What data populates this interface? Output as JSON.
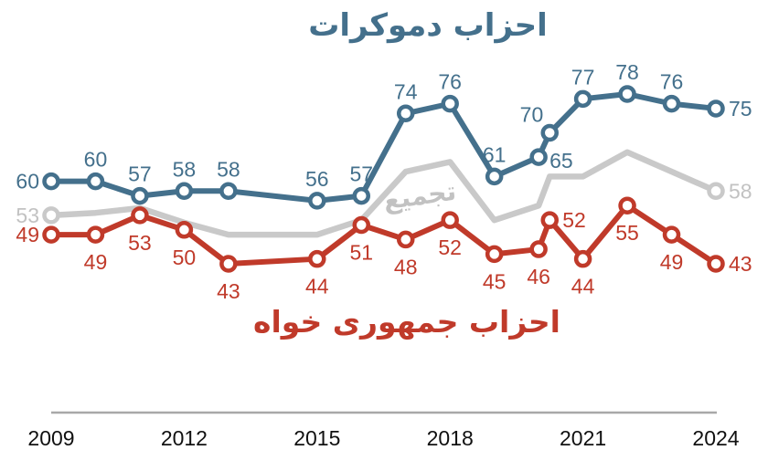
{
  "chart_data": {
    "type": "line",
    "title": "احزاب دموكرات",
    "bottom_title": "احزاب جمهوری خواه",
    "aggregate_label": "تجميع",
    "x": [
      2009,
      2010,
      2011,
      2012,
      2013,
      2015,
      2016,
      2017,
      2018,
      2019,
      2020,
      2020.25,
      2021,
      2022,
      2023,
      2024
    ],
    "x_tick_labels": [
      "2009",
      "2012",
      "2015",
      "2018",
      "2021",
      "2024"
    ],
    "x_range": [
      2009,
      2024
    ],
    "y_range": [
      43,
      78
    ],
    "grid": false,
    "legend_position": "inline-labels",
    "axis_color": "#a8a8a8",
    "series": [
      {
        "name": "total",
        "display_name": "تجميع",
        "color": "#c9c9c9",
        "label_color": "#c2c2c2",
        "values": [
          53,
          53.5,
          54.5,
          51.5,
          49,
          49,
          52,
          62,
          64,
          52,
          55,
          61,
          61,
          66,
          62,
          58
        ],
        "markers": "ends",
        "label_pos": [
          "left",
          null,
          null,
          null,
          null,
          null,
          null,
          null,
          null,
          null,
          null,
          null,
          null,
          null,
          null,
          "right"
        ]
      },
      {
        "name": "democrats",
        "display_name": "احزاب دموكرات",
        "color": "#44708c",
        "label_color": "#44708c",
        "values": [
          60,
          60,
          57,
          58,
          58,
          56,
          57,
          74,
          76,
          61,
          65,
          70,
          77,
          78,
          76,
          75
        ],
        "markers": "all",
        "label_pos": [
          "left",
          "above",
          "above",
          "above",
          "above",
          "above",
          "above",
          "above",
          "above",
          "above",
          "right-below",
          "above-left",
          "above",
          "above",
          "above",
          "right"
        ]
      },
      {
        "name": "republicans",
        "display_name": "احزاب جمهوری خواه",
        "color": "#c03a2a",
        "label_color": "#c03a2a",
        "values": [
          49,
          49,
          53,
          50,
          43,
          44,
          51,
          48,
          52,
          45,
          46,
          52,
          44,
          55,
          49,
          43
        ],
        "markers": "all",
        "label_pos": [
          "left",
          "below",
          "below",
          "below",
          "below",
          "below",
          "below",
          "below",
          "below",
          "below",
          "below",
          "right",
          "below",
          "below",
          "below",
          "right"
        ]
      }
    ]
  }
}
